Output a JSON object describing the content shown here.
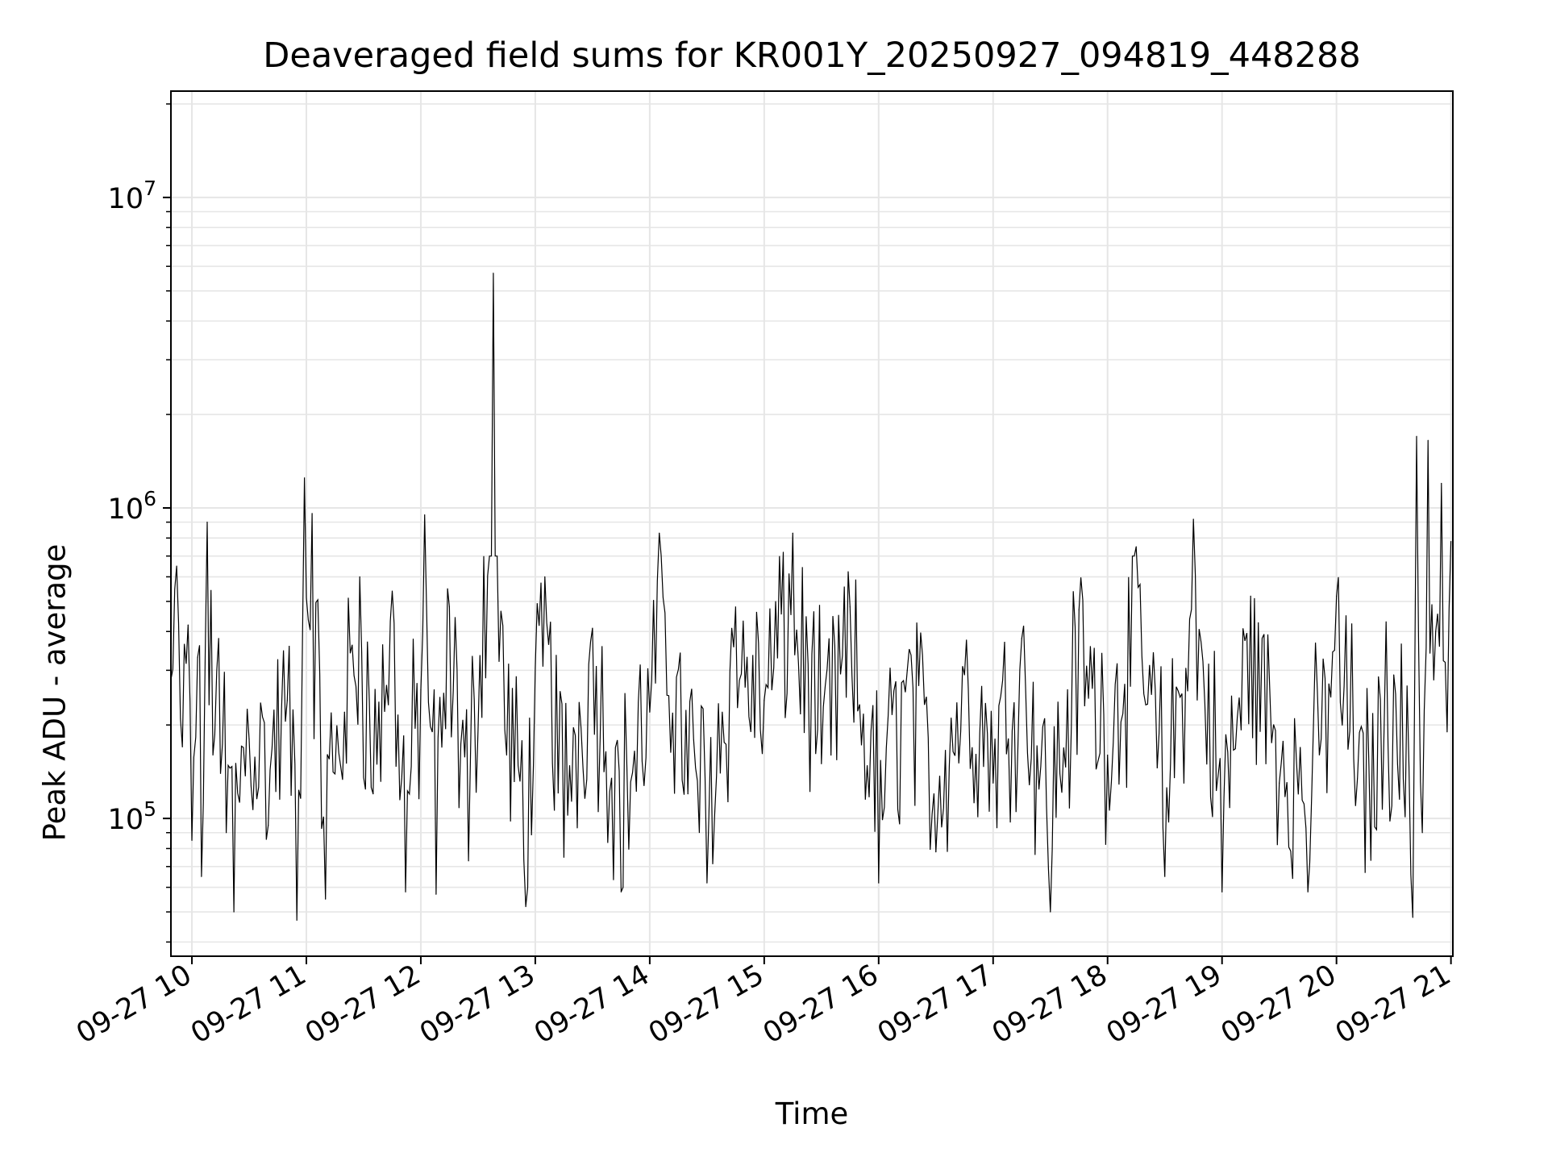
{
  "chart_data": {
    "type": "line",
    "title": "Deaveraged field sums for KR001Y_20250927_094819_448288",
    "xlabel": "Time",
    "ylabel": "Peak ADU - average",
    "xscale": "time",
    "yscale": "log",
    "xlim": [
      "2025-09-27 09:49",
      "2025-09-27 21:01"
    ],
    "ylim": [
      36000,
      22000000
    ],
    "grid": true,
    "line_color": "#000000",
    "grid_color": "#e6e6e6",
    "x_tick_labels": [
      "09-27 10",
      "09-27 11",
      "09-27 12",
      "09-27 13",
      "09-27 14",
      "09-27 15",
      "09-27 16",
      "09-27 17",
      "09-27 18",
      "09-27 19",
      "09-27 20",
      "09-27 21"
    ],
    "x_tick_values": [
      "2025-09-27 10:00",
      "2025-09-27 11:00",
      "2025-09-27 12:00",
      "2025-09-27 13:00",
      "2025-09-27 14:00",
      "2025-09-27 15:00",
      "2025-09-27 16:00",
      "2025-09-27 17:00",
      "2025-09-27 18:00",
      "2025-09-27 19:00",
      "2025-09-27 20:00",
      "2025-09-27 21:00"
    ],
    "y_major_ticks": [
      {
        "value": 100000,
        "base": "10",
        "exp": "5"
      },
      {
        "value": 1000000,
        "base": "10",
        "exp": "6"
      },
      {
        "value": 10000000,
        "base": "10",
        "exp": "7"
      }
    ],
    "series": [
      {
        "points": [
          [
            "2025-09-27 09:49",
            280000
          ],
          [
            "2025-09-27 09:52",
            650000
          ],
          [
            "2025-09-27 09:55",
            170000
          ],
          [
            "2025-09-27 09:58",
            420000
          ],
          [
            "2025-09-27 10:00",
            85000
          ],
          [
            "2025-09-27 10:03",
            330000
          ],
          [
            "2025-09-27 10:05",
            65000
          ],
          [
            "2025-09-27 10:08",
            900000
          ],
          [
            "2025-09-27 10:11",
            160000
          ],
          [
            "2025-09-27 10:14",
            380000
          ],
          [
            "2025-09-27 10:18",
            90000
          ],
          [
            "2025-09-27 10:22",
            50000
          ],
          [
            "2025-09-27 10:30",
            180000
          ],
          [
            "2025-09-27 10:40",
            95000
          ],
          [
            "2025-09-27 10:50",
            240000
          ],
          [
            "2025-09-27 10:55",
            47000
          ],
          [
            "2025-09-27 10:59",
            1250000
          ],
          [
            "2025-09-27 11:03",
            960000
          ],
          [
            "2025-09-27 11:10",
            55000
          ],
          [
            "2025-09-27 11:20",
            220000
          ],
          [
            "2025-09-27 11:28",
            600000
          ],
          [
            "2025-09-27 11:35",
            120000
          ],
          [
            "2025-09-27 11:45",
            540000
          ],
          [
            "2025-09-27 11:52",
            58000
          ],
          [
            "2025-09-27 12:00",
            260000
          ],
          [
            "2025-09-27 12:02",
            950000
          ],
          [
            "2025-09-27 12:08",
            57000
          ],
          [
            "2025-09-27 12:15",
            480000
          ],
          [
            "2025-09-27 12:25",
            73000
          ],
          [
            "2025-09-27 12:38",
            5700000
          ],
          [
            "2025-09-27 12:45",
            160000
          ],
          [
            "2025-09-27 12:55",
            52000
          ],
          [
            "2025-09-27 13:05",
            600000
          ],
          [
            "2025-09-27 13:15",
            75000
          ],
          [
            "2025-09-27 13:30",
            410000
          ],
          [
            "2025-09-27 13:45",
            58000
          ],
          [
            "2025-09-27 14:00",
            220000
          ],
          [
            "2025-09-27 14:05",
            830000
          ],
          [
            "2025-09-27 14:20",
            120000
          ],
          [
            "2025-09-27 14:30",
            62000
          ],
          [
            "2025-09-27 14:45",
            480000
          ],
          [
            "2025-09-27 15:00",
            240000
          ],
          [
            "2025-09-27 15:10",
            720000
          ],
          [
            "2025-09-27 15:15",
            830000
          ],
          [
            "2025-09-27 15:30",
            150000
          ],
          [
            "2025-09-27 15:45",
            480000
          ],
          [
            "2025-09-27 16:00",
            62000
          ],
          [
            "2025-09-27 16:15",
            300000
          ],
          [
            "2025-09-27 16:30",
            78000
          ],
          [
            "2025-09-27 16:45",
            290000
          ],
          [
            "2025-09-27 17:00",
            130000
          ],
          [
            "2025-09-27 17:15",
            380000
          ],
          [
            "2025-09-27 17:30",
            50000
          ],
          [
            "2025-09-27 17:45",
            470000
          ],
          [
            "2025-09-27 18:00",
            160000
          ],
          [
            "2025-09-27 18:15",
            750000
          ],
          [
            "2025-09-27 18:30",
            65000
          ],
          [
            "2025-09-27 18:45",
            920000
          ],
          [
            "2025-09-27 19:00",
            58000
          ],
          [
            "2025-09-27 19:15",
            520000
          ],
          [
            "2025-09-27 19:30",
            130000
          ],
          [
            "2025-09-27 19:45",
            58000
          ],
          [
            "2025-09-27 20:00",
            520000
          ],
          [
            "2025-09-27 20:15",
            67000
          ],
          [
            "2025-09-27 20:30",
            290000
          ],
          [
            "2025-09-27 20:40",
            48000
          ],
          [
            "2025-09-27 20:42",
            1700000
          ],
          [
            "2025-09-27 20:45",
            90000
          ],
          [
            "2025-09-27 20:48",
            1650000
          ],
          [
            "2025-09-27 20:52",
            400000
          ],
          [
            "2025-09-27 20:55",
            1200000
          ],
          [
            "2025-09-27 20:58",
            190000
          ],
          [
            "2025-09-27 21:00",
            780000
          ]
        ]
      }
    ]
  }
}
